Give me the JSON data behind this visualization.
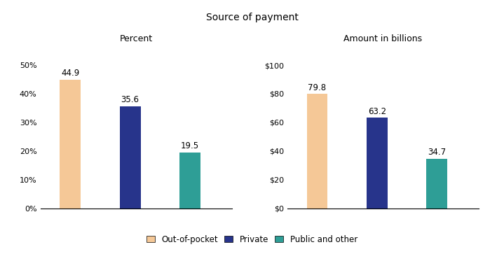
{
  "title": "Source of payment",
  "left_title": "Percent",
  "right_title": "Amount in billions",
  "categories": [
    "Out-of-pocket",
    "Private",
    "Public and other"
  ],
  "percent_values": [
    44.9,
    35.6,
    19.5
  ],
  "amount_values": [
    79.8,
    63.2,
    34.7
  ],
  "colors": [
    "#F5C897",
    "#27348B",
    "#2E9E96"
  ],
  "legend_labels": [
    "Out-of-pocket",
    "Private",
    "Public and other"
  ],
  "percent_yticks": [
    0,
    10,
    20,
    30,
    40,
    50
  ],
  "amount_yticks": [
    0,
    20,
    40,
    60,
    80,
    100
  ],
  "bar_width": 0.35,
  "bar_positions": [
    0.5,
    1.5,
    2.5
  ],
  "xlim": [
    0.0,
    3.2
  ],
  "figsize": [
    7.19,
    3.63
  ],
  "dpi": 100
}
